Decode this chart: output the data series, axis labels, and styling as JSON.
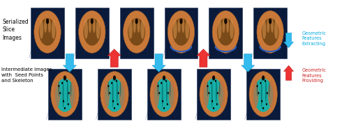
{
  "fig_width": 5.0,
  "fig_height": 1.74,
  "dpi": 100,
  "bg_color": "#ffffff",
  "label_top_left": "Serialized\nSlice\nImages",
  "label_bottom_left": "Intermediate Images\nwith  Seed Points\nand Skeleton",
  "legend_cyan_label": "Geometric\nFeatures\nExtracting",
  "legend_red_label": "Geometric\nFeatures\nProviding",
  "dark_bg": "#0a1a3a",
  "brain_outer": "#c8773a",
  "brain_inner": "#8a5a20",
  "cyan_overlay": "#00c0c0",
  "blue_stripe": "#3060a0"
}
